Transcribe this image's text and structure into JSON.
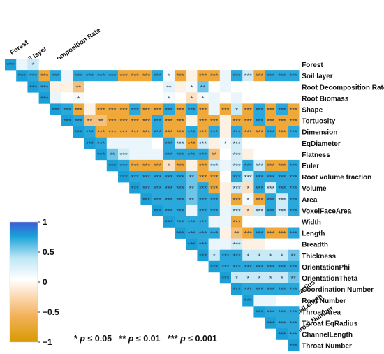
{
  "chart_data": {
    "type": "heatmap",
    "title": "",
    "variables": [
      "Forest",
      "Soil layer",
      "Root Decomposition Rate",
      "Root Biomass",
      "Shape",
      "Tortuosity",
      "Dimension",
      "EqDiameter",
      "Flatness",
      "Euler",
      "Root volume fraction",
      "Volume",
      "Area",
      "VoxelFaceArea",
      "Width",
      "Length",
      "Breadth",
      "Thickness",
      "OrientationPhi",
      "OrientationTheta",
      "Coordination Number",
      "Root Number",
      "Throat Area",
      "Throat EqRadius",
      "ChannelLength",
      "Throat Number"
    ],
    "matrix_shape": "upper-triangle",
    "value_range": [
      -1,
      1
    ],
    "cells": [
      "+++.*.......................",
      "++-++++++---+.----++.-+++++",
      "++---..*.....-.+.+..........",
      "++.....*.....-.+.+..........",
      "++-----+--+-+-+-+-+-+--+++",
      "++------+--------+---+++++",
      "++-----+--+-+-+--+-+-+++",
      "++++++.+.-.-.....",
      "++.+++++++-..-...",
      "++-------.+.+.--++++++",
      "+++++++--.+.+++++++",
      "+++++++--.-+.++++++",
      "+++++++--.-+.++++++",
      "+++++++.-.+.++++++",
      "++++++-.........",
      "++++---+--++++",
      "++++.--.......",
      "++++++++++++",
      "++++++++++",
      "++++++++",
      "+++++++",
      "+++...",
      "++++",
      "+++",
      "++",
      "+"
    ],
    "significance_labels": [
      [
        "***",
        "",
        "*",
        "",
        "",
        "",
        "",
        "",
        "",
        "",
        "",
        "",
        "",
        "",
        "",
        "",
        "",
        "",
        "",
        "",
        "",
        "",
        "",
        "",
        "",
        ""
      ],
      [
        "",
        "***",
        "***",
        "***",
        "***",
        "",
        "***",
        "***",
        "***",
        "***",
        "***",
        "***",
        "***",
        "***",
        "*",
        "***",
        "",
        "***",
        "***",
        "",
        "***",
        "***",
        "***",
        "***",
        "***",
        "***"
      ],
      [
        "",
        "",
        "***",
        "***",
        "",
        "",
        "**",
        "",
        "",
        "",
        "",
        "",
        "",
        "",
        "**",
        "",
        "*",
        "**",
        "",
        "",
        "",
        "",
        "",
        "",
        "",
        ""
      ],
      [
        "",
        "",
        "",
        "***",
        "",
        "",
        "*",
        "",
        "",
        "",
        "",
        "",
        "",
        "",
        "*",
        "",
        "*",
        "*",
        "",
        "",
        "",
        "",
        "",
        "",
        "",
        ""
      ],
      [
        "",
        "",
        "",
        "",
        "***",
        "***",
        "***",
        "",
        "***",
        "***",
        "***",
        "***",
        "***",
        "***",
        "***",
        "***",
        "***",
        "***",
        "",
        "***",
        "*",
        "***",
        "***",
        "***",
        "***",
        "***"
      ],
      [
        "",
        "",
        "",
        "",
        "",
        "***",
        "***",
        "**",
        "**",
        "***",
        "***",
        "***",
        "***",
        "***",
        "***",
        "***",
        "",
        "***",
        "***",
        "",
        "***",
        "***",
        "***",
        "***",
        "***",
        "***"
      ],
      [
        "",
        "",
        "",
        "",
        "",
        "",
        "***",
        "***",
        "***",
        "***",
        "***",
        "***",
        "***",
        "***",
        "***",
        "***",
        "***",
        "***",
        "***",
        "",
        "***",
        "***",
        "***",
        "***",
        "***",
        "***"
      ],
      [
        "",
        "",
        "",
        "",
        "",
        "",
        "",
        "***",
        "***",
        "",
        "",
        "",
        "",
        "",
        "***",
        "***",
        "***",
        "***",
        "",
        "*",
        "***",
        "",
        "",
        "",
        "",
        ""
      ],
      [
        "",
        "",
        "",
        "",
        "",
        "",
        "",
        "",
        "***",
        "**",
        "***",
        "",
        "",
        "",
        "***",
        "***",
        "***",
        "***",
        "**",
        "",
        "***",
        "",
        "",
        "",
        "",
        ""
      ],
      [
        "",
        "",
        "",
        "",
        "",
        "",
        "",
        "",
        "",
        "***",
        "***",
        "***",
        "***",
        "***",
        "*",
        "***",
        "",
        "***",
        "***",
        "",
        "***",
        "***",
        "***",
        "***",
        "***",
        "***"
      ],
      [
        "",
        "",
        "",
        "",
        "",
        "",
        "",
        "",
        "",
        "",
        "***",
        "***",
        "***",
        "***",
        "***",
        "***",
        "**",
        "***",
        "***",
        "",
        "***",
        "***",
        "***",
        "***",
        "***",
        "***"
      ],
      [
        "",
        "",
        "",
        "",
        "",
        "",
        "",
        "",
        "",
        "",
        "",
        "***",
        "***",
        "***",
        "***",
        "***",
        "**",
        "***",
        "***",
        "",
        "***",
        "*",
        "***",
        "***",
        "***",
        "***"
      ],
      [
        "",
        "",
        "",
        "",
        "",
        "",
        "",
        "",
        "",
        "",
        "",
        "",
        "***",
        "***",
        "***",
        "***",
        "**",
        "***",
        "***",
        "",
        "***",
        "*",
        "***",
        "***",
        "***",
        "***"
      ],
      [
        "",
        "",
        "",
        "",
        "",
        "",
        "",
        "",
        "",
        "",
        "",
        "",
        "",
        "***",
        "***",
        "***",
        "",
        "***",
        "***",
        "",
        "***",
        "*",
        "***",
        "***",
        "***",
        "***"
      ],
      [
        "",
        "",
        "",
        "",
        "",
        "",
        "",
        "",
        "",
        "",
        "",
        "",
        "",
        "",
        "***",
        "***",
        "***",
        "***",
        "",
        "",
        "***",
        "",
        "",
        "",
        "",
        ""
      ],
      [
        "",
        "",
        "",
        "",
        "",
        "",
        "",
        "",
        "",
        "",
        "",
        "",
        "",
        "",
        "",
        "***",
        "***",
        "***",
        "***",
        "",
        "**",
        "***",
        "***",
        "***",
        "***",
        "***"
      ],
      [
        "",
        "",
        "",
        "",
        "",
        "",
        "",
        "",
        "",
        "",
        "",
        "",
        "",
        "",
        "",
        "",
        "***",
        "***",
        "",
        "",
        "***",
        "",
        "",
        "",
        "",
        ""
      ],
      [
        "",
        "",
        "",
        "",
        "",
        "",
        "",
        "",
        "",
        "",
        "",
        "",
        "",
        "",
        "",
        "",
        "",
        "***",
        "*",
        "***",
        "***",
        "*",
        "*",
        "*",
        "*",
        "**"
      ],
      [
        "",
        "",
        "",
        "",
        "",
        "",
        "",
        "",
        "",
        "",
        "",
        "",
        "",
        "",
        "",
        "",
        "",
        "",
        "***",
        "***",
        "***",
        "***",
        "***",
        "***",
        "***",
        "***"
      ],
      [
        "",
        "",
        "",
        "",
        "",
        "",
        "",
        "",
        "",
        "",
        "",
        "",
        "",
        "",
        "",
        "",
        "",
        "",
        "",
        "***",
        "*",
        "*",
        "*",
        "*",
        "*",
        "**"
      ],
      [
        "",
        "",
        "",
        "",
        "",
        "",
        "",
        "",
        "",
        "",
        "",
        "",
        "",
        "",
        "",
        "",
        "",
        "",
        "",
        "",
        "***",
        "***",
        "***",
        "***",
        "***",
        "***"
      ],
      [
        "",
        "",
        "",
        "",
        "",
        "",
        "",
        "",
        "",
        "",
        "",
        "",
        "",
        "",
        "",
        "",
        "",
        "",
        "",
        "",
        "",
        "***",
        "",
        "",
        "",
        ""
      ],
      [
        "",
        "",
        "",
        "",
        "",
        "",
        "",
        "",
        "",
        "",
        "",
        "",
        "",
        "",
        "",
        "",
        "",
        "",
        "",
        "",
        "",
        "",
        "***",
        "***",
        "***",
        "***"
      ],
      [
        "",
        "",
        "",
        "",
        "",
        "",
        "",
        "",
        "",
        "",
        "",
        "",
        "",
        "",
        "",
        "",
        "",
        "",
        "",
        "",
        "",
        "",
        "",
        "***",
        "***",
        "***"
      ],
      [
        "",
        "",
        "",
        "",
        "",
        "",
        "",
        "",
        "",
        "",
        "",
        "",
        "",
        "",
        "",
        "",
        "",
        "",
        "",
        "",
        "",
        "",
        "",
        "",
        "***",
        "***"
      ],
      [
        "",
        "",
        "",
        "",
        "",
        "",
        "",
        "",
        "",
        "",
        "",
        "",
        "",
        "",
        "",
        "",
        "",
        "",
        "",
        "",
        "",
        "",
        "",
        "",
        "",
        "***"
      ]
    ],
    "colorbar": {
      "ticks": [
        1,
        0.5,
        0,
        -0.5,
        -1
      ],
      "tick_labels": [
        "1",
        "0.5",
        "0",
        "−0.5",
        "−1"
      ],
      "colors": {
        "positive": "#1aa3d8",
        "positive_strong": "#3b5bd6",
        "neutral": "#ffffff",
        "negative": "#f0a030",
        "negative_strong": "#d89a00"
      }
    },
    "legend_note": {
      "p1_star": "*",
      "p1": "p",
      "p1_rest": " ≤ 0.05",
      "p2_star": "**",
      "p2": "p",
      "p2_rest": " ≤ 0.01",
      "p3_star": "***",
      "p3": "p",
      "p3_rest": " ≤ 0.001"
    }
  }
}
